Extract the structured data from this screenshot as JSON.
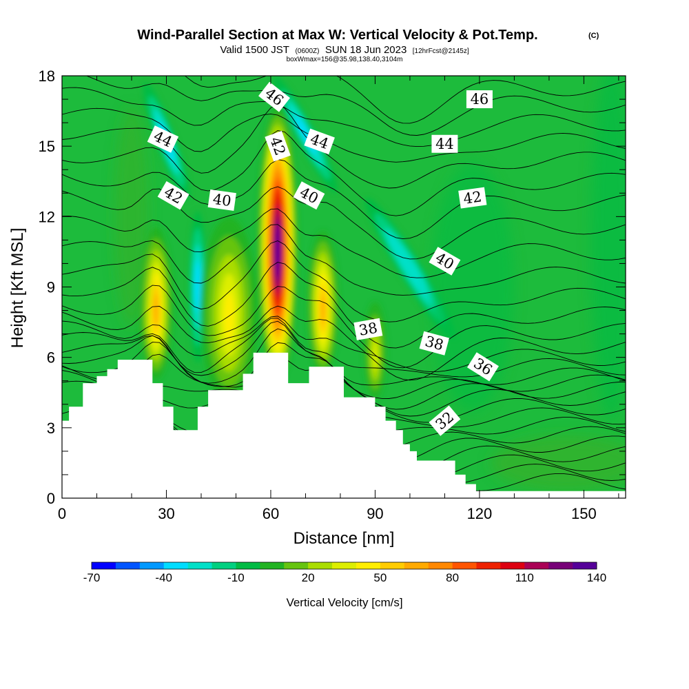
{
  "title": {
    "main": "Wind-Parallel Section at Max W: Vertical Velocity & Pot.Temp.",
    "copyright": "(C)",
    "valid_prefix": "Valid 1500 JST",
    "valid_utc": "(0600Z)",
    "valid_date": "SUN 18 Jun 2023",
    "forecast": "[12hrFcst@2145z]",
    "box": "boxWmax=156@35.98,138.40,3104m"
  },
  "chart_data": {
    "type": "heatmap",
    "xlabel": "Distance [nm]",
    "ylabel": "Height [Kft MSL]",
    "xlim": [
      0,
      162
    ],
    "ylim": [
      0,
      18
    ],
    "x_ticks": [
      "0",
      "30",
      "60",
      "90",
      "120",
      "150"
    ],
    "x_tick_values": [
      0,
      30,
      60,
      90,
      120,
      150
    ],
    "y_ticks": [
      "0",
      "3",
      "6",
      "9",
      "12",
      "15",
      "18"
    ],
    "y_tick_values": [
      0,
      3,
      6,
      9,
      12,
      15,
      18
    ],
    "colorbar": {
      "title": "Vertical Velocity [cm/s]",
      "labels": [
        "-70",
        "-40",
        "-10",
        "20",
        "50",
        "80",
        "110",
        "140"
      ],
      "label_values": [
        -70,
        -40,
        -10,
        20,
        50,
        80,
        110,
        140
      ],
      "min": -70,
      "step": 10,
      "colors": [
        "#0000ff",
        "#0055ff",
        "#0099ff",
        "#00ddff",
        "#00e0c8",
        "#00d080",
        "#00bb44",
        "#22b322",
        "#66c40f",
        "#aadd00",
        "#ddee00",
        "#ffee00",
        "#ffcc00",
        "#ffaa00",
        "#ff8800",
        "#ff5500",
        "#ee2200",
        "#dd0011",
        "#aa0055",
        "#770077",
        "#550099"
      ]
    },
    "terrain_kft": [
      [
        0,
        3.3
      ],
      [
        2,
        3.3
      ],
      [
        2,
        3.9
      ],
      [
        6,
        3.9
      ],
      [
        6,
        4.9
      ],
      [
        10,
        4.9
      ],
      [
        10,
        5.2
      ],
      [
        13,
        5.2
      ],
      [
        13,
        5.5
      ],
      [
        16,
        5.5
      ],
      [
        16,
        5.9
      ],
      [
        26,
        5.9
      ],
      [
        26,
        4.9
      ],
      [
        29,
        4.9
      ],
      [
        29,
        3.9
      ],
      [
        32,
        3.9
      ],
      [
        32,
        2.9
      ],
      [
        39,
        2.9
      ],
      [
        39,
        3.9
      ],
      [
        42,
        3.9
      ],
      [
        42,
        4.6
      ],
      [
        52,
        4.6
      ],
      [
        52,
        5.3
      ],
      [
        55,
        5.3
      ],
      [
        55,
        6.2
      ],
      [
        65,
        6.2
      ],
      [
        65,
        4.9
      ],
      [
        71,
        4.9
      ],
      [
        71,
        5.6
      ],
      [
        81,
        5.6
      ],
      [
        81,
        4.3
      ],
      [
        90,
        4.3
      ],
      [
        90,
        3.9
      ],
      [
        93,
        3.9
      ],
      [
        93,
        3.3
      ],
      [
        96,
        3.3
      ],
      [
        96,
        2.9
      ],
      [
        98,
        2.9
      ],
      [
        98,
        2.3
      ],
      [
        100,
        2.3
      ],
      [
        100,
        2.0
      ],
      [
        102,
        2.0
      ],
      [
        102,
        1.6
      ],
      [
        113,
        1.6
      ],
      [
        113,
        1.0
      ],
      [
        116,
        1.0
      ],
      [
        116,
        0.6
      ],
      [
        119,
        0.6
      ],
      [
        119,
        0.3
      ],
      [
        162,
        0.3
      ]
    ],
    "updraft_cores": [
      {
        "distance": 62,
        "height": 10.8,
        "max_w": 140
      },
      {
        "distance": 27,
        "height": 8.3,
        "max_w": 60
      },
      {
        "distance": 75,
        "height": 8.3,
        "max_w": 60
      },
      {
        "distance": 48,
        "height": 8.0,
        "max_w": 40
      },
      {
        "distance": 90,
        "height": 6.3,
        "max_w": 30
      }
    ],
    "downdraft_bands": [
      {
        "distance": 39,
        "height": 9.0,
        "min_w": -40
      },
      {
        "distance": 30,
        "height": 15.0,
        "min_w": -40
      },
      {
        "distance": 70,
        "height": 15.0,
        "min_w": -40
      },
      {
        "distance": 100,
        "height": 9.5,
        "min_w": -30
      }
    ],
    "contour_labels": [
      {
        "label": "46",
        "distance": 61,
        "height": 17.1,
        "angle": 38
      },
      {
        "label": "46",
        "distance": 120,
        "height": 17.0,
        "angle": 0
      },
      {
        "label": "44",
        "distance": 29,
        "height": 15.3,
        "angle": 25
      },
      {
        "label": "42",
        "distance": 62,
        "height": 15.0,
        "angle": 70
      },
      {
        "label": "44",
        "distance": 74,
        "height": 15.2,
        "angle": 20
      },
      {
        "label": "44",
        "distance": 110,
        "height": 15.1,
        "angle": 0
      },
      {
        "label": "42",
        "distance": 32,
        "height": 12.9,
        "angle": 30
      },
      {
        "label": "40",
        "distance": 46,
        "height": 12.7,
        "angle": 8
      },
      {
        "label": "40",
        "distance": 71,
        "height": 12.9,
        "angle": 28
      },
      {
        "label": "42",
        "distance": 118,
        "height": 12.8,
        "angle": -8
      },
      {
        "label": "40",
        "distance": 110,
        "height": 10.1,
        "angle": 30
      },
      {
        "label": "38",
        "distance": 88,
        "height": 7.2,
        "angle": -10
      },
      {
        "label": "38",
        "distance": 107,
        "height": 6.6,
        "angle": 15
      },
      {
        "label": "36",
        "distance": 121,
        "height": 5.6,
        "angle": 32
      },
      {
        "label": "32",
        "distance": 110,
        "height": 3.3,
        "angle": -40
      }
    ]
  }
}
